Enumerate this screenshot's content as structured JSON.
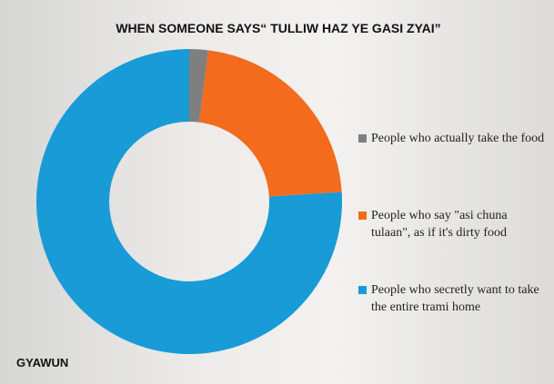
{
  "chart_data": {
    "type": "donut",
    "title": "WHEN SOMEONE SAYS“ TULLIW HAZ YE GASI ZYAI”",
    "categories": [
      "People who actually take the food",
      "People who say \"asi chuna tulaan\", as if it's dirty food",
      "People who secretly want to take the entire trami home"
    ],
    "values": [
      2,
      22,
      76
    ],
    "colors": [
      "#7f7f7f",
      "#f36b1c",
      "#189bd7"
    ],
    "legend": "right",
    "footer": "GYAWUN"
  }
}
